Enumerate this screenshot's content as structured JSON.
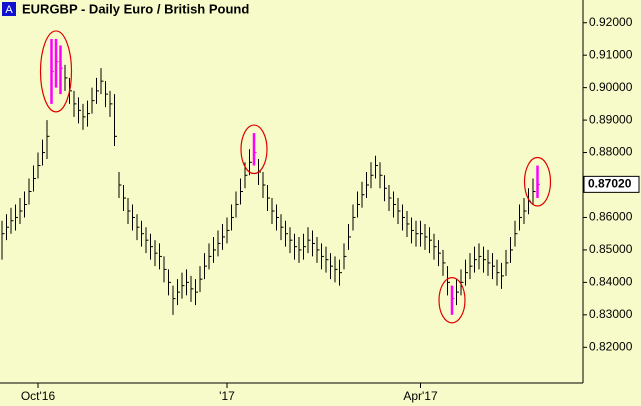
{
  "chart_data": {
    "type": "ohlc",
    "badge": "A",
    "title": "EURGBP - Daily  Euro / British Pound",
    "color": "#000000",
    "highlight_color": "#ff00ff",
    "circle_color": "#e00000",
    "highlight": [
      11,
      12,
      13,
      56,
      100,
      119
    ],
    "ylim": [
      0.809,
      0.927
    ],
    "yticks": [
      {
        "value": 0.82,
        "label": "0.82000"
      },
      {
        "value": 0.83,
        "label": "0.83000"
      },
      {
        "value": 0.84,
        "label": "0.84000"
      },
      {
        "value": 0.85,
        "label": "0.85000"
      },
      {
        "value": 0.86,
        "label": "0.86000"
      },
      {
        "value": 0.87,
        "label": "0.87000"
      },
      {
        "value": 0.88,
        "label": "0.88000"
      },
      {
        "value": 0.89,
        "label": "0.89000"
      },
      {
        "value": 0.9,
        "label": "0.90000"
      },
      {
        "value": 0.91,
        "label": "0.91000"
      },
      {
        "value": 0.92,
        "label": "0.92000"
      }
    ],
    "last_price": {
      "value": 0.8702,
      "label": "0.87020"
    },
    "categories": [
      null,
      null,
      null,
      null,
      null,
      null,
      null,
      null,
      "Oct'16",
      null,
      null,
      null,
      null,
      null,
      null,
      null,
      null,
      null,
      null,
      null,
      null,
      null,
      null,
      null,
      null,
      null,
      null,
      null,
      null,
      null,
      null,
      null,
      null,
      null,
      null,
      null,
      null,
      null,
      null,
      null,
      null,
      null,
      null,
      null,
      null,
      null,
      null,
      null,
      null,
      null,
      "'17",
      null,
      null,
      null,
      null,
      null,
      null,
      null,
      null,
      null,
      null,
      null,
      null,
      null,
      null,
      null,
      null,
      null,
      null,
      null,
      null,
      null,
      null,
      null,
      null,
      null,
      null,
      null,
      null,
      null,
      null,
      null,
      null,
      null,
      null,
      null,
      null,
      null,
      null,
      null,
      null,
      null,
      null,
      "Apr'17",
      null,
      null,
      null,
      null,
      null,
      null,
      null,
      null,
      null,
      null,
      null,
      null,
      null,
      null,
      null,
      null,
      null,
      null,
      null,
      null,
      null,
      null,
      null,
      null,
      null,
      null
    ],
    "high": [
      0.859,
      0.861,
      0.863,
      0.864,
      0.866,
      0.868,
      0.872,
      0.876,
      0.88,
      0.884,
      0.89,
      0.915,
      0.915,
      0.913,
      0.907,
      0.903,
      0.899,
      0.897,
      0.895,
      0.896,
      0.9,
      0.903,
      0.906,
      0.902,
      0.899,
      0.898,
      0.874,
      0.87,
      0.866,
      0.864,
      0.861,
      0.859,
      0.857,
      0.855,
      0.853,
      0.852,
      0.848,
      0.844,
      0.839,
      0.841,
      0.843,
      0.844,
      0.842,
      0.841,
      0.845,
      0.849,
      0.852,
      0.854,
      0.856,
      0.858,
      0.86,
      0.864,
      0.868,
      0.872,
      0.877,
      0.881,
      0.886,
      0.878,
      0.874,
      0.87,
      0.866,
      0.864,
      0.861,
      0.859,
      0.857,
      0.855,
      0.854,
      0.855,
      0.857,
      0.856,
      0.854,
      0.852,
      0.851,
      0.849,
      0.848,
      0.847,
      0.852,
      0.858,
      0.864,
      0.868,
      0.871,
      0.874,
      0.877,
      0.879,
      0.877,
      0.873,
      0.87,
      0.868,
      0.866,
      0.864,
      0.862,
      0.86,
      0.859,
      0.859,
      0.858,
      0.857,
      0.855,
      0.853,
      0.85,
      0.845,
      0.839,
      0.841,
      0.844,
      0.847,
      0.849,
      0.851,
      0.852,
      0.851,
      0.85,
      0.849,
      0.847,
      0.846,
      0.85,
      0.854,
      0.859,
      0.864,
      0.866,
      0.869,
      0.872,
      0.876
    ],
    "low": [
      0.847,
      0.853,
      0.855,
      0.856,
      0.858,
      0.86,
      0.864,
      0.868,
      0.872,
      0.876,
      0.878,
      0.895,
      0.9,
      0.898,
      0.899,
      0.895,
      0.891,
      0.889,
      0.887,
      0.888,
      0.892,
      0.895,
      0.898,
      0.894,
      0.891,
      0.882,
      0.866,
      0.862,
      0.858,
      0.856,
      0.853,
      0.851,
      0.849,
      0.847,
      0.845,
      0.844,
      0.84,
      0.836,
      0.83,
      0.833,
      0.835,
      0.836,
      0.834,
      0.833,
      0.837,
      0.841,
      0.844,
      0.846,
      0.848,
      0.85,
      0.852,
      0.856,
      0.86,
      0.864,
      0.869,
      0.873,
      0.876,
      0.87,
      0.866,
      0.862,
      0.858,
      0.856,
      0.853,
      0.851,
      0.849,
      0.847,
      0.846,
      0.847,
      0.849,
      0.848,
      0.846,
      0.844,
      0.843,
      0.841,
      0.84,
      0.839,
      0.844,
      0.85,
      0.856,
      0.86,
      0.863,
      0.866,
      0.869,
      0.872,
      0.869,
      0.865,
      0.862,
      0.86,
      0.858,
      0.856,
      0.854,
      0.852,
      0.851,
      0.851,
      0.85,
      0.849,
      0.847,
      0.845,
      0.842,
      0.836,
      0.83,
      0.833,
      0.836,
      0.839,
      0.841,
      0.843,
      0.844,
      0.843,
      0.842,
      0.841,
      0.839,
      0.838,
      0.842,
      0.846,
      0.851,
      0.856,
      0.858,
      0.861,
      0.864,
      0.866
    ],
    "close": [
      0.855,
      0.857,
      0.859,
      0.86,
      0.862,
      0.864,
      0.868,
      0.872,
      0.876,
      0.88,
      0.885,
      0.905,
      0.908,
      0.906,
      0.903,
      0.899,
      0.895,
      0.893,
      0.891,
      0.892,
      0.896,
      0.899,
      0.902,
      0.898,
      0.895,
      0.885,
      0.87,
      0.866,
      0.862,
      0.86,
      0.857,
      0.855,
      0.853,
      0.851,
      0.849,
      0.848,
      0.844,
      0.84,
      0.835,
      0.837,
      0.839,
      0.84,
      0.838,
      0.837,
      0.841,
      0.845,
      0.848,
      0.85,
      0.852,
      0.854,
      0.856,
      0.86,
      0.864,
      0.868,
      0.873,
      0.877,
      0.88,
      0.874,
      0.87,
      0.866,
      0.862,
      0.86,
      0.857,
      0.855,
      0.853,
      0.851,
      0.85,
      0.851,
      0.853,
      0.852,
      0.85,
      0.848,
      0.847,
      0.845,
      0.844,
      0.843,
      0.848,
      0.854,
      0.86,
      0.864,
      0.867,
      0.87,
      0.873,
      0.876,
      0.873,
      0.869,
      0.866,
      0.864,
      0.862,
      0.86,
      0.858,
      0.856,
      0.855,
      0.855,
      0.854,
      0.853,
      0.851,
      0.849,
      0.846,
      0.84,
      0.835,
      0.837,
      0.84,
      0.843,
      0.845,
      0.847,
      0.848,
      0.847,
      0.846,
      0.845,
      0.843,
      0.842,
      0.846,
      0.85,
      0.855,
      0.86,
      0.862,
      0.865,
      0.868,
      0.8702
    ]
  }
}
